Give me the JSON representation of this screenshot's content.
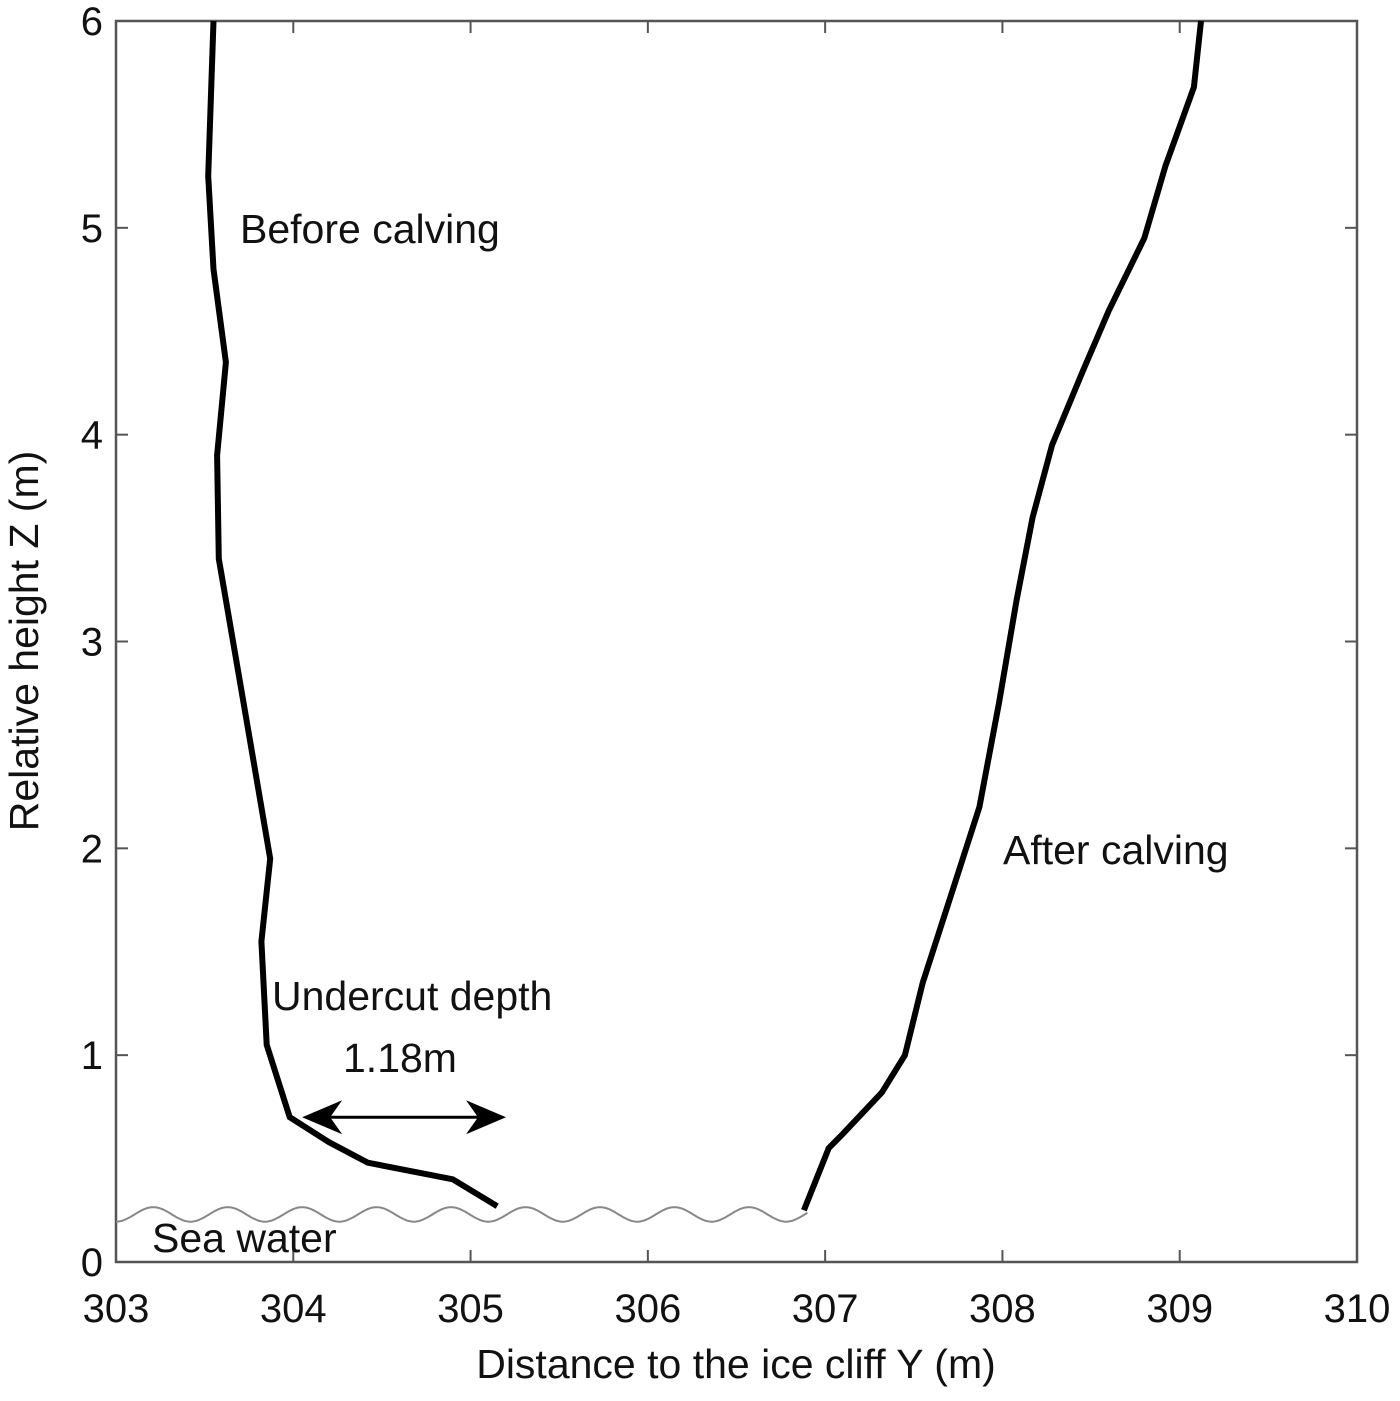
{
  "chart_data": {
    "type": "line",
    "title": "",
    "xlabel": "Distance to the ice cliff Y (m)",
    "ylabel": "Relative height Z (m)",
    "xlim": [
      303,
      310
    ],
    "ylim": [
      0,
      6
    ],
    "xticks": [
      "303",
      "304",
      "305",
      "306",
      "307",
      "308",
      "309",
      "310"
    ],
    "yticks": [
      "0",
      "1",
      "2",
      "3",
      "4",
      "5",
      "6"
    ],
    "grid": false,
    "series": [
      {
        "name": "Before calving",
        "color": "#000000",
        "points": [
          [
            303.55,
            6.0
          ],
          [
            303.52,
            5.25
          ],
          [
            303.55,
            4.8
          ],
          [
            303.62,
            4.35
          ],
          [
            303.57,
            3.9
          ],
          [
            303.58,
            3.4
          ],
          [
            303.68,
            2.9
          ],
          [
            303.78,
            2.4
          ],
          [
            303.87,
            1.95
          ],
          [
            303.82,
            1.55
          ],
          [
            303.85,
            1.05
          ],
          [
            303.98,
            0.7
          ],
          [
            304.2,
            0.58
          ],
          [
            304.42,
            0.48
          ],
          [
            304.6,
            0.45
          ],
          [
            304.9,
            0.4
          ],
          [
            305.15,
            0.27
          ]
        ]
      },
      {
        "name": "After calving",
        "color": "#000000",
        "points": [
          [
            309.12,
            6.0
          ],
          [
            309.08,
            5.68
          ],
          [
            308.92,
            5.3
          ],
          [
            308.8,
            4.95
          ],
          [
            308.6,
            4.6
          ],
          [
            308.45,
            4.3
          ],
          [
            308.28,
            3.95
          ],
          [
            308.17,
            3.6
          ],
          [
            308.08,
            3.2
          ],
          [
            307.98,
            2.7
          ],
          [
            307.87,
            2.2
          ],
          [
            307.72,
            1.8
          ],
          [
            307.55,
            1.35
          ],
          [
            307.45,
            1.0
          ],
          [
            307.32,
            0.82
          ],
          [
            307.1,
            0.62
          ],
          [
            307.02,
            0.55
          ],
          [
            306.88,
            0.25
          ]
        ]
      }
    ],
    "sea_water": {
      "level": 0.23,
      "amplitude": 0.035,
      "wavelength": 0.42,
      "color": "#888888",
      "x_end": 306.9
    },
    "annotations": {
      "before_label": "Before calving",
      "after_label": "After calving",
      "undercut_title": "Undercut depth",
      "undercut_value": "1.18m",
      "sea_water_label": "Sea water"
    },
    "undercut_arrow": {
      "from": [
        304.05,
        0.7
      ],
      "to": [
        305.2,
        0.7
      ]
    }
  }
}
